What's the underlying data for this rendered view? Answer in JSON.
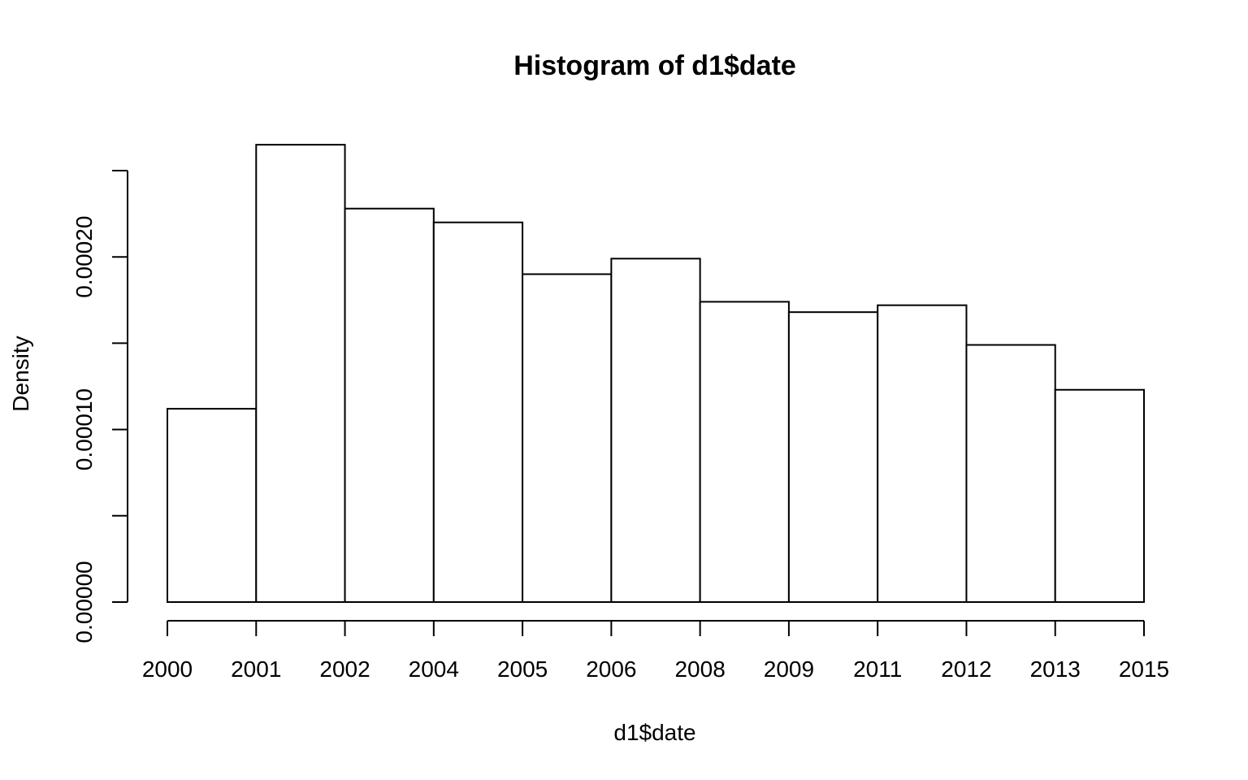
{
  "chart_data": {
    "type": "bar",
    "title": "Histogram of d1$date",
    "xlabel": "d1$date",
    "ylabel": "Density",
    "x_ticks": [
      "2000",
      "2001",
      "2002",
      "2004",
      "2005",
      "2006",
      "2008",
      "2009",
      "2011",
      "2012",
      "2013",
      "2015"
    ],
    "bins": [
      {
        "from": "2000",
        "to": "2001",
        "density": 0.000112
      },
      {
        "from": "2001",
        "to": "2002",
        "density": 0.000265
      },
      {
        "from": "2002",
        "to": "2004",
        "density": 0.000228
      },
      {
        "from": "2004",
        "to": "2005",
        "density": 0.00022
      },
      {
        "from": "2005",
        "to": "2006",
        "density": 0.00019
      },
      {
        "from": "2006",
        "to": "2008",
        "density": 0.000199
      },
      {
        "from": "2008",
        "to": "2009",
        "density": 0.000174
      },
      {
        "from": "2009",
        "to": "2011",
        "density": 0.000168
      },
      {
        "from": "2011",
        "to": "2012",
        "density": 0.000172
      },
      {
        "from": "2012",
        "to": "2013",
        "density": 0.000149
      },
      {
        "from": "2013",
        "to": "2015",
        "density": 0.000123
      }
    ],
    "y_ticks": [
      0,
      5e-05,
      0.0001,
      0.00015,
      0.0002,
      0.00025
    ],
    "y_tick_labels": [
      "0.00000",
      "",
      "0.00010",
      "",
      "0.00020",
      ""
    ],
    "ylim": [
      0,
      0.00025
    ],
    "grid": false,
    "legend": "none",
    "colors": {
      "bar_fill": "#ffffff",
      "stroke": "#000000"
    }
  }
}
